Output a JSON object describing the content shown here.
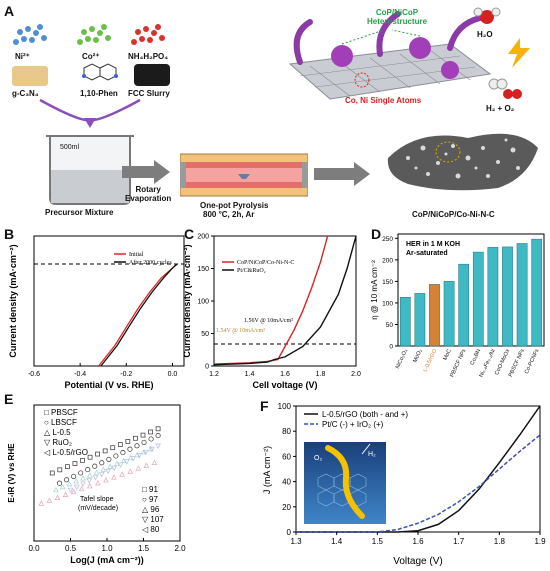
{
  "panels": {
    "A": {
      "letter": "A",
      "precursors": [
        "Ni²⁺",
        "Co²⁺",
        "NH₄H₂PO₄",
        "g-C₃N₄",
        "1,10-Phen",
        "FCC Slurry"
      ],
      "beaker_label": "500ml",
      "precursor_caption": "Precursor Mixture",
      "step1": "Rotary\nEvaporation",
      "furnace_title": "One-pot Pyrolysis",
      "furnace_cond": "800 °C, 2h, Ar",
      "product_caption": "CoP/NiCoP/Co-Ni-N-C",
      "hetero_label": "CoP/NiCoP\nHeterostructure",
      "single_atoms_label": "Co, Ni Single Atoms",
      "water_label": "H₂O",
      "products_label": "H₂ + O₂"
    },
    "B": {
      "letter": "B",
      "ylabel": "Current density (mA·cm⁻²)",
      "xlabel": "Potential (V vs. RHE)",
      "xticks": [
        "-0.6",
        "-0.4",
        "-0.2",
        "0.0"
      ],
      "legend": [
        "Initial",
        "After 2000 cycles"
      ]
    },
    "C": {
      "letter": "C",
      "ylabel": "Current density (mA·cm⁻²)",
      "xlabel": "Cell voltage (V)",
      "xticks": [
        "1.2",
        "1.4",
        "1.6",
        "1.8",
        "2.0"
      ],
      "yticks": [
        "0",
        "50",
        "100",
        "150",
        "200"
      ],
      "legend": [
        "CoP/NiCoP/Co-Ni-N-C",
        "Pt/C&RuO₂"
      ],
      "ann1": "1.56V @ 10mA/cm²",
      "ann2": "1.54V @ 10mA/cm²"
    },
    "D": {
      "letter": "D",
      "title1": "HER in 1 M KOH",
      "title2": "Ar-saturated",
      "ylabel": "η @ 10 mA cm⁻²",
      "yticks": [
        "0",
        "50",
        "100",
        "150",
        "200",
        "250"
      ]
    },
    "E": {
      "letter": "E",
      "ylabel": "E-iR (V) vs RHE",
      "xlabel": "Log(J (mA cm⁻²))",
      "xticks": [
        "0.0",
        "0.5",
        "1.0",
        "1.5",
        "2.0"
      ],
      "legend": [
        "PBSCF",
        "LBSCF",
        "L-0.5",
        "RuO₂",
        "L-0.5/rGO"
      ],
      "tafel_title": "Tafel slope",
      "tafel_unit": "(mV/decade)",
      "tafel_values": [
        "91",
        "97",
        "96",
        "107",
        "80"
      ]
    },
    "F": {
      "letter": "F",
      "ylabel": "J (mA cm⁻²)",
      "xlabel": "Voltage (V)",
      "xticks": [
        "1.3",
        "1.4",
        "1.5",
        "1.6",
        "1.7",
        "1.8",
        "1.9"
      ],
      "yticks": [
        "0",
        "20",
        "40",
        "60",
        "80",
        "100"
      ],
      "legend": [
        "L-0.5/rGO (both - and +)",
        "Pt/C (-) + IrO₂ (+)"
      ],
      "inset_o2": "O₂",
      "inset_h2": "H₂"
    }
  },
  "chart_data": [
    {
      "type": "bar",
      "panel": "D",
      "title": "HER in 1 M KOH Ar-saturated",
      "ylabel": "η @ 10 mA cm⁻²",
      "ylim": [
        0,
        260
      ],
      "categories": [
        "NiCo₂O₄",
        "MoO₂",
        "L-0.5/rGO",
        "MoC",
        "PBSCF NPs",
        "Co₃BN",
        "Ni₀.₈Fe₀.₂/Ni",
        "CoO-MoOx",
        "PBSCF NFs",
        "Co-PCNFs"
      ],
      "values": [
        113,
        122,
        143,
        150,
        190,
        218,
        229,
        230,
        238,
        248
      ],
      "color": "#3fb9c4",
      "highlight_color": "#d4813a"
    },
    {
      "type": "line",
      "panel": "F",
      "xlabel": "Voltage (V)",
      "ylabel": "J (mA cm⁻²)",
      "xlim": [
        1.3,
        1.9
      ],
      "ylim": [
        0,
        100
      ],
      "series": [
        {
          "name": "L-0.5/rGO (both - and +)",
          "style": "solid",
          "x": [
            1.3,
            1.55,
            1.6,
            1.65,
            1.7,
            1.75,
            1.8,
            1.85,
            1.9
          ],
          "y": [
            0,
            0,
            1,
            6,
            17,
            34,
            55,
            77,
            100
          ]
        },
        {
          "name": "Pt/C (-) + IrO₂ (+)",
          "style": "dashed",
          "x": [
            1.3,
            1.5,
            1.55,
            1.6,
            1.65,
            1.7,
            1.75,
            1.8,
            1.85,
            1.9
          ],
          "y": [
            0,
            0,
            2,
            7,
            14,
            24,
            36,
            50,
            64,
            77
          ]
        }
      ]
    },
    {
      "type": "line",
      "panel": "C",
      "xlabel": "Cell voltage (V)",
      "ylabel": "Current density (mA·cm⁻²)",
      "xlim": [
        1.2,
        2.0
      ],
      "ylim": [
        0,
        200
      ],
      "series": [
        {
          "name": "CoP/NiCoP/Co-Ni-N-C",
          "color": "#d62728",
          "x": [
            1.2,
            1.4,
            1.5,
            1.56,
            1.6,
            1.65,
            1.7,
            1.75,
            1.8,
            1.84
          ],
          "y": [
            3,
            5,
            7,
            10,
            30,
            55,
            85,
            120,
            160,
            200
          ]
        },
        {
          "name": "Pt/C&RuO₂",
          "color": "#111111",
          "x": [
            1.2,
            1.4,
            1.5,
            1.54,
            1.6,
            1.7,
            1.8,
            1.9,
            1.95,
            2.0
          ],
          "y": [
            2,
            4,
            6,
            10,
            14,
            30,
            60,
            110,
            150,
            200
          ]
        }
      ]
    },
    {
      "type": "line",
      "panel": "B",
      "xlabel": "Potential (V vs. RHE)",
      "ylabel": "Current density (mA·cm⁻²)",
      "xlim": [
        -0.6,
        0.05
      ],
      "series": [
        {
          "name": "Initial",
          "color": "#d62728",
          "x": [
            -0.32,
            -0.25,
            -0.2,
            -0.15,
            -0.1,
            -0.05,
            0.0,
            0.02
          ],
          "y": [
            -100,
            -80,
            -62,
            -44,
            -28,
            -14,
            -4,
            0
          ]
        },
        {
          "name": "After 2000 cycles",
          "color": "#111111",
          "x": [
            -0.31,
            -0.24,
            -0.19,
            -0.14,
            -0.09,
            -0.04,
            0.0,
            0.02
          ],
          "y": [
            -100,
            -80,
            -62,
            -44,
            -28,
            -14,
            -4,
            0
          ]
        }
      ]
    },
    {
      "type": "scatter",
      "panel": "E",
      "xlabel": "Log(J (mA cm⁻²))",
      "ylabel": "E-iR (V) vs RHE",
      "xlim": [
        0.0,
        2.0
      ],
      "series": [
        {
          "name": "PBSCF",
          "tafel": 91,
          "x0": 0.25,
          "x1": 1.7,
          "y0": 1.55,
          "y1": 1.68
        },
        {
          "name": "LBSCF",
          "tafel": 97,
          "x0": 0.35,
          "x1": 1.7,
          "y0": 1.52,
          "y1": 1.66
        },
        {
          "name": "L-0.5",
          "tafel": 96,
          "x0": 0.3,
          "x1": 1.6,
          "y0": 1.5,
          "y1": 1.62
        },
        {
          "name": "RuO₂",
          "tafel": 107,
          "x0": 0.5,
          "x1": 1.7,
          "y0": 1.5,
          "y1": 1.63
        },
        {
          "name": "L-0.5/rGO",
          "tafel": 80,
          "x0": 0.1,
          "x1": 1.65,
          "y0": 1.46,
          "y1": 1.58
        }
      ]
    }
  ]
}
